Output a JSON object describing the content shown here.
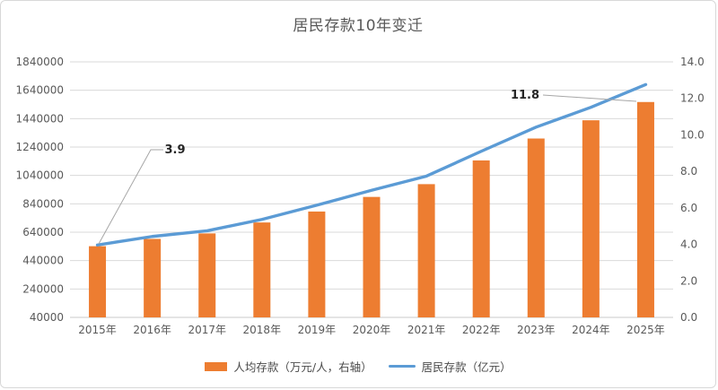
{
  "frame": {
    "background": "#FFFFFF",
    "border_color": "#D8D8D8"
  },
  "chart_data": {
    "type": "combo",
    "title": "居民存款10年变迁",
    "categories": [
      "2015年",
      "2016年",
      "2017年",
      "2018年",
      "2019年",
      "2020年",
      "2021年",
      "2022年",
      "2023年",
      "2024年",
      "2025年"
    ],
    "series": [
      {
        "name": "人均存款（万元/人，右轴）",
        "type": "bar",
        "axis": "right",
        "color": "#ED7D31",
        "values": [
          3.9,
          4.3,
          4.6,
          5.2,
          5.8,
          6.6,
          7.3,
          8.6,
          9.8,
          10.8,
          11.8
        ]
      },
      {
        "name": "居民存款（亿元）",
        "type": "line",
        "axis": "left",
        "color": "#5B9BD5",
        "values": [
          550000,
          610000,
          650000,
          730000,
          830000,
          935000,
          1035000,
          1210000,
          1380000,
          1520000,
          1680000
        ]
      }
    ],
    "left_axis": {
      "min": 40000,
      "max": 1840000,
      "step": 200000,
      "tick_labels": [
        "1840000",
        "1640000",
        "1440000",
        "1240000",
        "1040000",
        "840000",
        "640000",
        "440000",
        "240000",
        "40000"
      ]
    },
    "right_axis": {
      "min": 0,
      "max": 14,
      "step": 2,
      "tick_labels": [
        "14.0",
        "12.0",
        "10.0",
        "8.0",
        "6.0",
        "4.0",
        "2.0",
        "0.0"
      ]
    },
    "annotations": [
      {
        "text": "3.9",
        "series": 0,
        "index": 0
      },
      {
        "text": "11.8",
        "series": 0,
        "index": 10
      }
    ],
    "legend_position": "bottom",
    "grid": true,
    "colors": {
      "grid": "#D9D9D9",
      "axis_line": "#C9C9C9",
      "axis_text": "#595959",
      "title_text": "#595959",
      "annotation_text": "#262626",
      "leader": "#A6A6A6"
    }
  }
}
